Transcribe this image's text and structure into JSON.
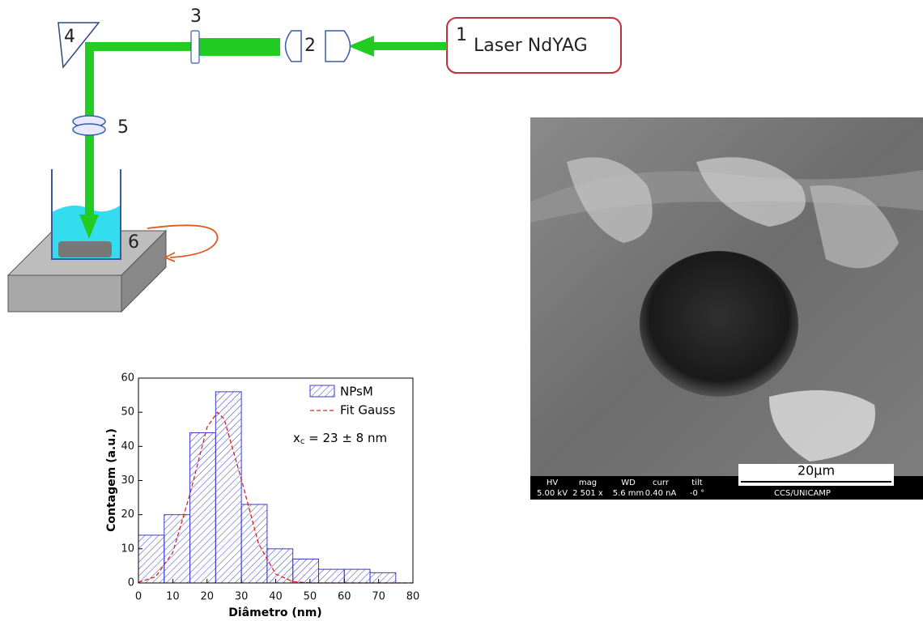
{
  "diagram": {
    "laser_number": "1",
    "laser_label": "Laser NdYAG",
    "labels": [
      "2",
      "3",
      "4",
      "5",
      "6"
    ]
  },
  "sem_image": {
    "scale_bar": "20μm",
    "info_headers": [
      "HV",
      "mag",
      "WD",
      "curr",
      "tilt"
    ],
    "info_values": [
      "5.00 kV",
      "2 501 x",
      "5.6 mm",
      "0.40 nA",
      "-0 °"
    ],
    "footer": "CCS/UNICAMP"
  },
  "chart_data": {
    "type": "histogram",
    "x_label": "Diâmetro (nm)",
    "y_label": "Contagem (a.u.)",
    "bins": [
      0,
      7.5,
      15,
      22.5,
      30,
      37.5,
      45,
      52.5,
      60,
      67.5,
      75
    ],
    "series": [
      {
        "name": "NPsM",
        "color": "#3a3ad0",
        "values": [
          14,
          20,
          44,
          56,
          23,
          10,
          7,
          4,
          4,
          3
        ]
      },
      {
        "name": "Fit Gauss",
        "color": "#e02020",
        "type": "line",
        "x": [
          0,
          5,
          10,
          15,
          20,
          23,
          25,
          30,
          35,
          40,
          45,
          50,
          60,
          70,
          80
        ],
        "values": [
          0.2,
          1.8,
          8.9,
          26,
          45.6,
          50,
          48,
          30.3,
          11.5,
          2.6,
          0.4,
          0,
          0,
          0,
          0
        ]
      }
    ],
    "annotation": {
      "text": "x",
      "subscript": "c",
      "rest": " = 23 ± 8 nm"
    },
    "xlim": [
      0,
      80
    ],
    "ylim": [
      0,
      60
    ],
    "xticks": [
      0,
      10,
      20,
      30,
      40,
      50,
      60,
      70,
      80
    ],
    "yticks": [
      0,
      10,
      20,
      30,
      40,
      50,
      60
    ]
  }
}
